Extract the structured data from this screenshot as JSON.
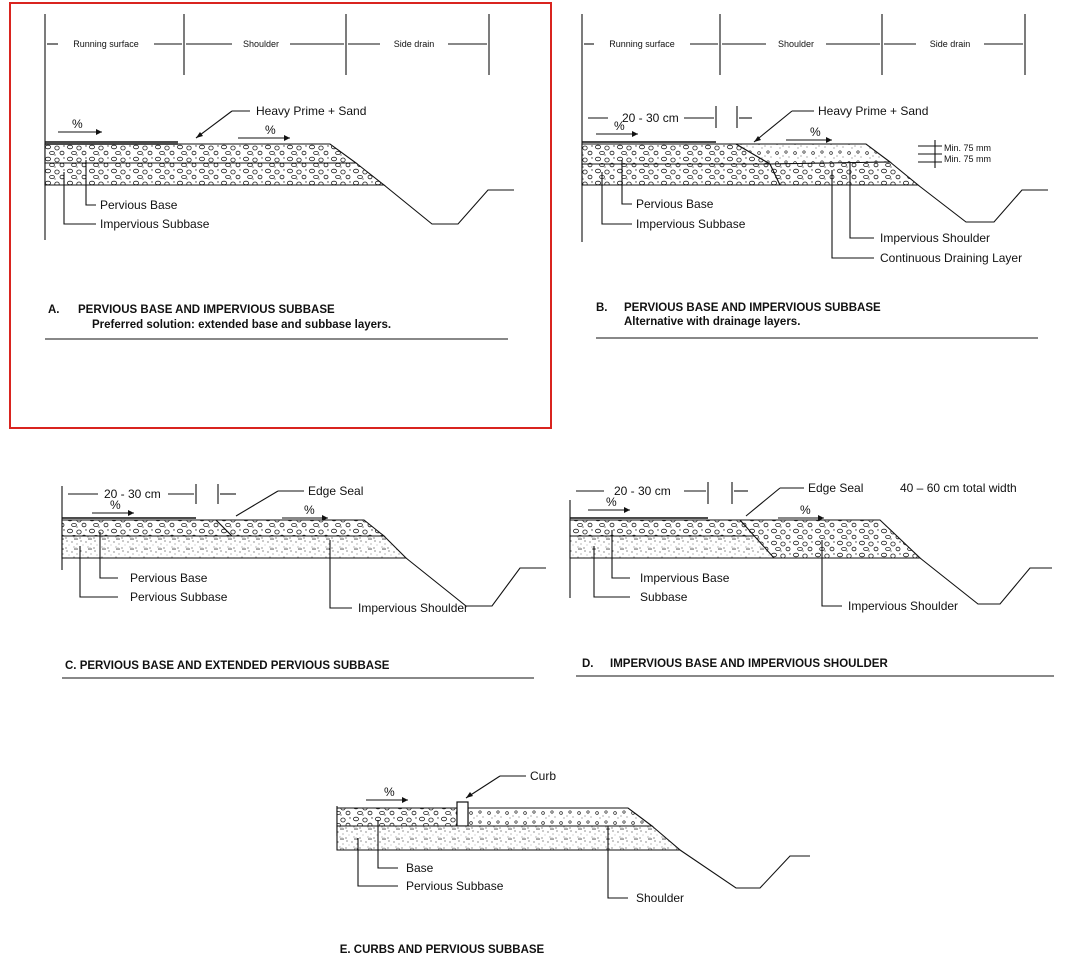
{
  "colors": {
    "ink": "#111111",
    "selection": "#d9241f",
    "background": "#ffffff"
  },
  "selection_box": {
    "panel": "A"
  },
  "panels": {
    "A": {
      "dims": [
        "Running surface",
        "Shoulder",
        "Side drain"
      ],
      "slope1": "%",
      "slope2": "%",
      "callout": "Heavy Prime + Sand",
      "labels": [
        "Pervious Base",
        "Impervious Subbase"
      ],
      "caption_letter": "A.",
      "caption_title": "PERVIOUS BASE AND IMPERVIOUS SUBBASE",
      "caption_sub": "Preferred solution: extended base and subbase layers."
    },
    "B": {
      "dims": [
        "Running surface",
        "Shoulder",
        "Side drain"
      ],
      "slope1": "%",
      "slope2": "%",
      "width": "20 - 30 cm",
      "callout": "Heavy Prime + Sand",
      "min1": "Min. 75 mm",
      "min2": "Min. 75 mm",
      "labels": [
        "Pervious Base",
        "Impervious Subbase",
        "Impervious Shoulder",
        "Continuous Draining Layer"
      ],
      "caption_letter": "B.",
      "caption_title": "PERVIOUS BASE AND IMPERVIOUS SUBBASE",
      "caption_sub": "Alternative with drainage layers."
    },
    "C": {
      "width": "20 - 30 cm",
      "callout": "Edge Seal",
      "slope1": "%",
      "slope2": "%",
      "labels": [
        "Pervious Base",
        "Pervious Subbase",
        "Impervious Shoulder"
      ],
      "caption": "C. PERVIOUS BASE AND EXTENDED PERVIOUS SUBBASE"
    },
    "D": {
      "width": "20 - 30 cm",
      "callout": "Edge Seal",
      "total": "40 – 60 cm total width",
      "slope1": "%",
      "slope2": "%",
      "labels": [
        "Impervious Base",
        "Subbase",
        "Impervious Shoulder"
      ],
      "caption_letter": "D.",
      "caption": "IMPERVIOUS BASE AND IMPERVIOUS SHOULDER"
    },
    "E": {
      "callout": "Curb",
      "slope1": "%",
      "labels": [
        "Base",
        "Pervious Subbase",
        "Shoulder"
      ],
      "caption": "E. CURBS AND PERVIOUS SUBBASE"
    }
  }
}
